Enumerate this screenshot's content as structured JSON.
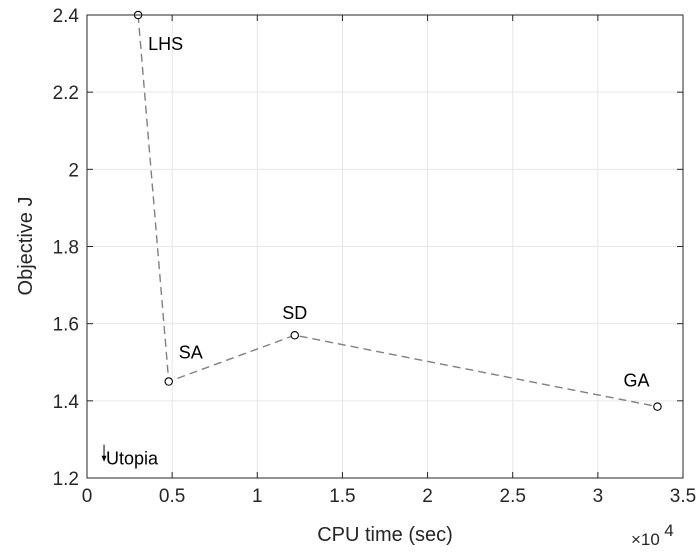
{
  "chart_data": {
    "type": "line",
    "xlabel": "CPU time (sec)",
    "ylabel": "Objective J",
    "x_exponent_base": "×10",
    "x_exponent_power": "4",
    "xlim": [
      0,
      3.5
    ],
    "ylim": [
      1.2,
      2.4
    ],
    "xticks": [
      "0",
      "0.5",
      "1",
      "1.5",
      "2",
      "2.5",
      "3",
      "3.5"
    ],
    "yticks": [
      "1.2",
      "1.4",
      "1.6",
      "1.8",
      "2",
      "2.2",
      "2.4"
    ],
    "grid": true,
    "series": [
      {
        "points": [
          {
            "label": "LHS",
            "x": 0.3,
            "y": 2.4
          },
          {
            "label": "SA",
            "x": 0.48,
            "y": 1.45
          },
          {
            "label": "SD",
            "x": 1.22,
            "y": 1.57
          },
          {
            "label": "GA",
            "x": 3.35,
            "y": 1.385
          }
        ]
      }
    ],
    "annotations": [
      {
        "label": "Utopia",
        "x": 0.1,
        "y": 1.25
      }
    ],
    "colors": {
      "line": "#808080",
      "marker": "#000000",
      "grid": "#e6e6e6",
      "axis": "#262626"
    }
  }
}
